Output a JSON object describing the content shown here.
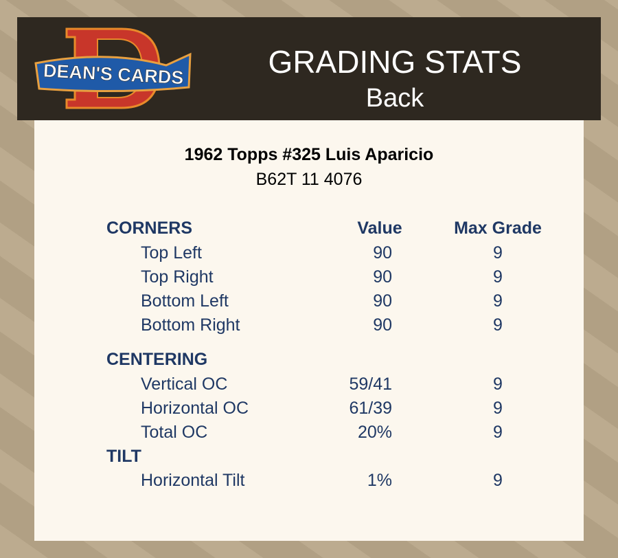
{
  "header": {
    "logo_text": "DEAN'S CARDS",
    "title": "GRADING STATS",
    "subtitle": "Back"
  },
  "card": {
    "title": "1962 Topps #325 Luis Aparicio",
    "id": "B62T 11 4076"
  },
  "columns": {
    "value": "Value",
    "max_grade": "Max Grade"
  },
  "sections": {
    "corners": {
      "label": "CORNERS",
      "rows": [
        {
          "label": "Top Left",
          "value": "90",
          "max": "9"
        },
        {
          "label": "Top Right",
          "value": "90",
          "max": "9"
        },
        {
          "label": "Bottom Left",
          "value": "90",
          "max": "9"
        },
        {
          "label": "Bottom Right",
          "value": "90",
          "max": "9"
        }
      ]
    },
    "centering": {
      "label": "CENTERING",
      "rows": [
        {
          "label": "Vertical OC",
          "value": "59/41",
          "max": "9"
        },
        {
          "label": "Horizontal OC",
          "value": "61/39",
          "max": "9"
        },
        {
          "label": "Total OC",
          "value": "20%",
          "max": "9"
        }
      ]
    },
    "tilt": {
      "label": "TILT",
      "rows": [
        {
          "label": "Horizontal Tilt",
          "value": "1%",
          "max": "9"
        }
      ]
    }
  },
  "colors": {
    "header_bg": "#2e2820",
    "card_bg": "#fcf7ee",
    "text": "#1f3864",
    "page_bg": "#b8a789"
  }
}
